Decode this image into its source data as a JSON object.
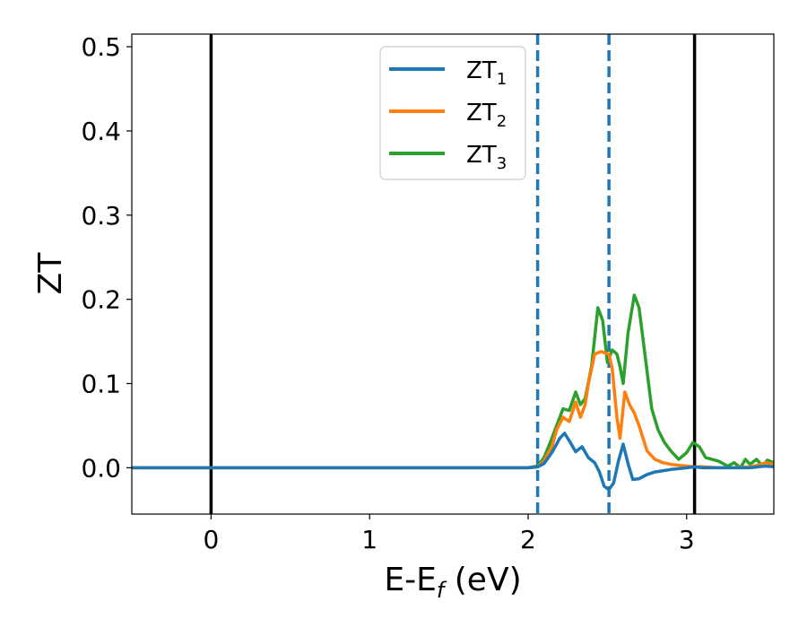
{
  "chart_data": {
    "type": "line",
    "xlabel": "E-E",
    "xlabel_sub": "f",
    "xlabel_unit": " (eV)",
    "ylabel": "ZT",
    "xlim": [
      -0.5,
      3.55
    ],
    "ylim": [
      -0.055,
      0.515
    ],
    "xticks": [
      0,
      1,
      2,
      3
    ],
    "yticks": [
      0.0,
      0.1,
      0.2,
      0.3,
      0.4,
      0.5
    ],
    "ytick_labels": [
      "0.0",
      "0.1",
      "0.2",
      "0.3",
      "0.4",
      "0.5"
    ],
    "grid": false,
    "legend_position": "top-center",
    "vlines_solid": [
      0.0,
      3.05
    ],
    "vlines_dashed": [
      2.06,
      2.51
    ],
    "vline_solid_color": "#000000",
    "vline_dashed_color": "#1f77b4",
    "series": [
      {
        "name": "ZT",
        "name_sub": "1",
        "color": "#1f77b4",
        "x": [
          -0.5,
          2.0,
          2.06,
          2.1,
          2.15,
          2.2,
          2.23,
          2.26,
          2.3,
          2.34,
          2.38,
          2.42,
          2.45,
          2.48,
          2.51,
          2.54,
          2.57,
          2.6,
          2.63,
          2.66,
          2.7,
          2.75,
          2.8,
          2.9,
          3.0,
          3.05,
          3.1,
          3.2,
          3.3,
          3.4,
          3.45,
          3.5,
          3.55
        ],
        "y": [
          0.0,
          0.0,
          0.001,
          0.005,
          0.018,
          0.035,
          0.041,
          0.032,
          0.019,
          0.025,
          0.012,
          0.006,
          -0.005,
          -0.022,
          -0.026,
          -0.018,
          0.008,
          0.028,
          0.005,
          -0.014,
          -0.013,
          -0.008,
          -0.005,
          -0.002,
          0.0,
          0.001,
          0.0,
          0.0,
          0.0,
          0.0,
          0.001,
          0.002,
          0.001
        ]
      },
      {
        "name": "ZT",
        "name_sub": "2",
        "color": "#ff7f0e",
        "x": [
          -0.5,
          2.0,
          2.06,
          2.1,
          2.15,
          2.18,
          2.22,
          2.26,
          2.3,
          2.33,
          2.36,
          2.38,
          2.42,
          2.46,
          2.49,
          2.51,
          2.53,
          2.56,
          2.58,
          2.61,
          2.64,
          2.67,
          2.7,
          2.75,
          2.8,
          2.85,
          2.9,
          3.0,
          3.05,
          3.1,
          3.2,
          3.3,
          3.4,
          3.45,
          3.5,
          3.55
        ],
        "y": [
          0.0,
          0.0,
          0.001,
          0.008,
          0.025,
          0.045,
          0.06,
          0.055,
          0.078,
          0.06,
          0.075,
          0.1,
          0.135,
          0.138,
          0.136,
          0.135,
          0.118,
          0.06,
          0.035,
          0.09,
          0.075,
          0.065,
          0.05,
          0.02,
          0.01,
          0.006,
          0.004,
          0.002,
          0.001,
          0.001,
          0.0,
          0.0,
          0.001,
          0.003,
          0.006,
          0.004
        ]
      },
      {
        "name": "ZT",
        "name_sub": "3",
        "color": "#2ca02c",
        "x": [
          -0.5,
          2.0,
          2.06,
          2.1,
          2.14,
          2.18,
          2.22,
          2.26,
          2.3,
          2.33,
          2.36,
          2.4,
          2.44,
          2.47,
          2.5,
          2.53,
          2.56,
          2.58,
          2.6,
          2.63,
          2.67,
          2.7,
          2.74,
          2.78,
          2.82,
          2.86,
          2.9,
          2.95,
          3.0,
          3.04,
          3.08,
          3.12,
          3.2,
          3.26,
          3.3,
          3.34,
          3.37,
          3.4,
          3.44,
          3.48,
          3.51,
          3.55
        ],
        "y": [
          0.0,
          0.0,
          0.002,
          0.012,
          0.03,
          0.05,
          0.07,
          0.068,
          0.09,
          0.075,
          0.082,
          0.12,
          0.19,
          0.175,
          0.125,
          0.14,
          0.135,
          0.12,
          0.1,
          0.16,
          0.205,
          0.19,
          0.13,
          0.07,
          0.045,
          0.03,
          0.02,
          0.01,
          0.018,
          0.03,
          0.025,
          0.012,
          0.008,
          0.002,
          0.006,
          0.0,
          0.01,
          0.004,
          0.01,
          0.002,
          0.009,
          0.006
        ]
      }
    ]
  }
}
